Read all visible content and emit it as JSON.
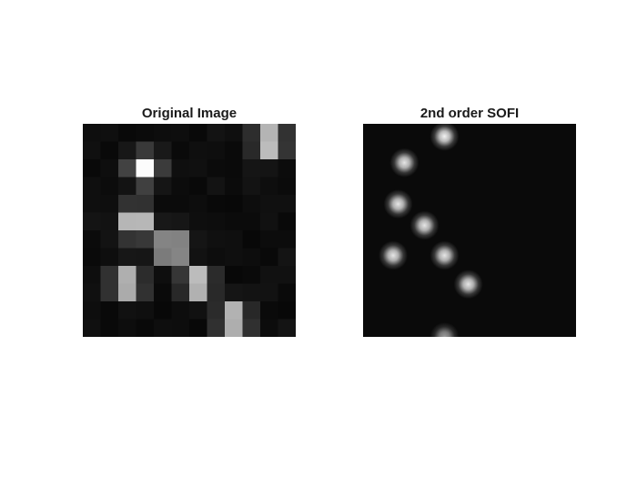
{
  "panels": [
    {
      "title": "Original Image",
      "rendering": "pixelated",
      "colormap": "gray",
      "emitters": [
        {
          "x": 10.0,
          "y": 0.5,
          "intensity": 1.0
        },
        {
          "x": 3.0,
          "y": 2.0,
          "intensity": 0.95
        },
        {
          "x": 2.5,
          "y": 5.0,
          "intensity": 1.0
        },
        {
          "x": 4.5,
          "y": 6.5,
          "intensity": 1.0
        },
        {
          "x": 2.0,
          "y": 8.5,
          "intensity": 0.95
        },
        {
          "x": 6.0,
          "y": 8.5,
          "intensity": 1.0
        },
        {
          "x": 8.0,
          "y": 10.5,
          "intensity": 0.95
        }
      ]
    },
    {
      "title": "2nd order SOFI",
      "rendering": "smooth",
      "colormap": "gray",
      "emitters": [
        {
          "x": 6.0,
          "y": 0.5,
          "intensity": 0.95
        },
        {
          "x": 2.8,
          "y": 2.6,
          "intensity": 0.9
        },
        {
          "x": 2.3,
          "y": 5.9,
          "intensity": 0.9
        },
        {
          "x": 4.4,
          "y": 7.6,
          "intensity": 0.9
        },
        {
          "x": 1.9,
          "y": 10.0,
          "intensity": 0.9
        },
        {
          "x": 6.0,
          "y": 10.0,
          "intensity": 0.9
        },
        {
          "x": 7.9,
          "y": 12.3,
          "intensity": 0.9
        },
        {
          "x": 6.0,
          "y": 16.5,
          "intensity": 0.6
        }
      ]
    }
  ]
}
